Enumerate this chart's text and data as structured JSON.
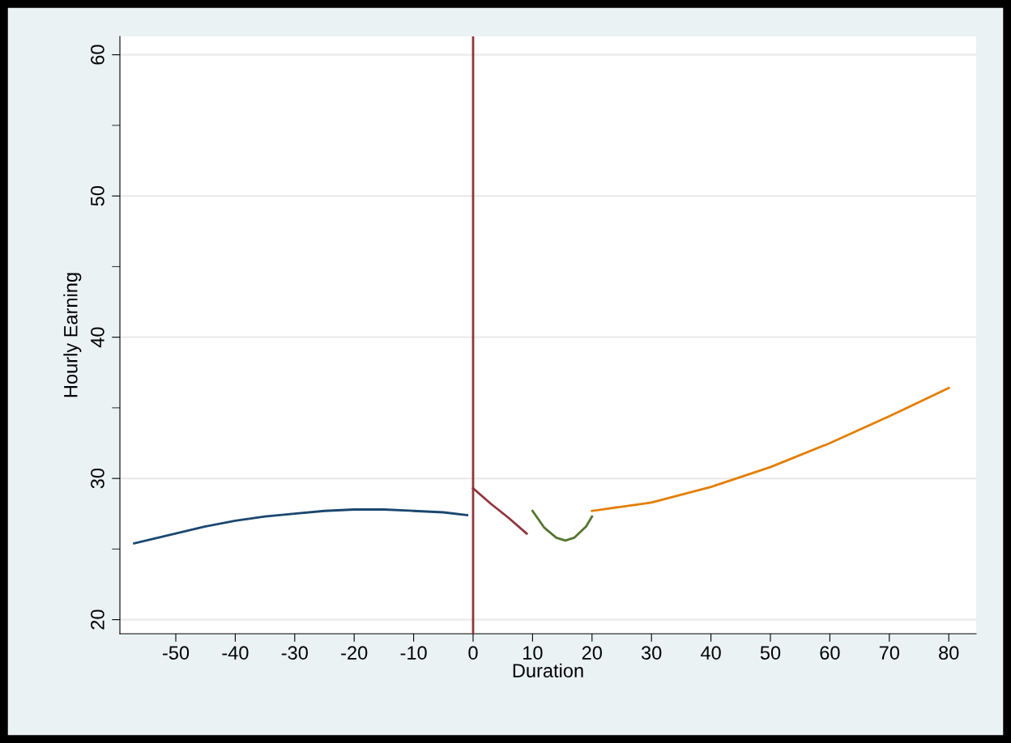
{
  "chart_data": {
    "type": "line",
    "xlabel": "Duration",
    "ylabel": "Hourly Earning",
    "xlim": [
      -59.4,
      84.6
    ],
    "ylim": [
      19,
      61.3
    ],
    "xticks": [
      -50,
      -40,
      -30,
      -20,
      -10,
      0,
      10,
      20,
      30,
      40,
      50,
      60,
      70,
      80
    ],
    "yticks": [
      20,
      {
        "value": 25,
        "label": null
      },
      30,
      {
        "value": 35,
        "label": null
      },
      40,
      {
        "value": 45,
        "label": null
      },
      50,
      {
        "value": 55,
        "label": null
      },
      60
    ],
    "grid": "y",
    "marker": "none",
    "line_style": "solid",
    "ref_lines": [
      {
        "axis": "x",
        "value": 0,
        "color": "#90353b"
      }
    ],
    "series": [
      {
        "color": "#1a476f",
        "x": [
          -57,
          -50,
          -45,
          -40,
          -35,
          -30,
          -25,
          -20,
          -15,
          -10,
          -5,
          -1
        ],
        "values": [
          25.4,
          26.1,
          26.6,
          27.0,
          27.3,
          27.5,
          27.7,
          27.8,
          27.8,
          27.7,
          27.6,
          27.4
        ]
      },
      {
        "color": "#90353b",
        "x": [
          0,
          3,
          6,
          9
        ],
        "values": [
          29.3,
          28.2,
          27.2,
          26.1
        ]
      },
      {
        "color": "#55752f",
        "x": [
          10,
          12,
          14,
          15.5,
          17,
          19,
          20
        ],
        "values": [
          27.7,
          26.5,
          25.8,
          25.6,
          25.8,
          26.6,
          27.3
        ]
      },
      {
        "color": "#e37e00",
        "x": [
          20,
          25,
          30,
          40,
          50,
          60,
          70,
          80
        ],
        "values": [
          27.7,
          28.0,
          28.3,
          29.4,
          30.8,
          32.5,
          34.4,
          36.4
        ]
      }
    ]
  }
}
